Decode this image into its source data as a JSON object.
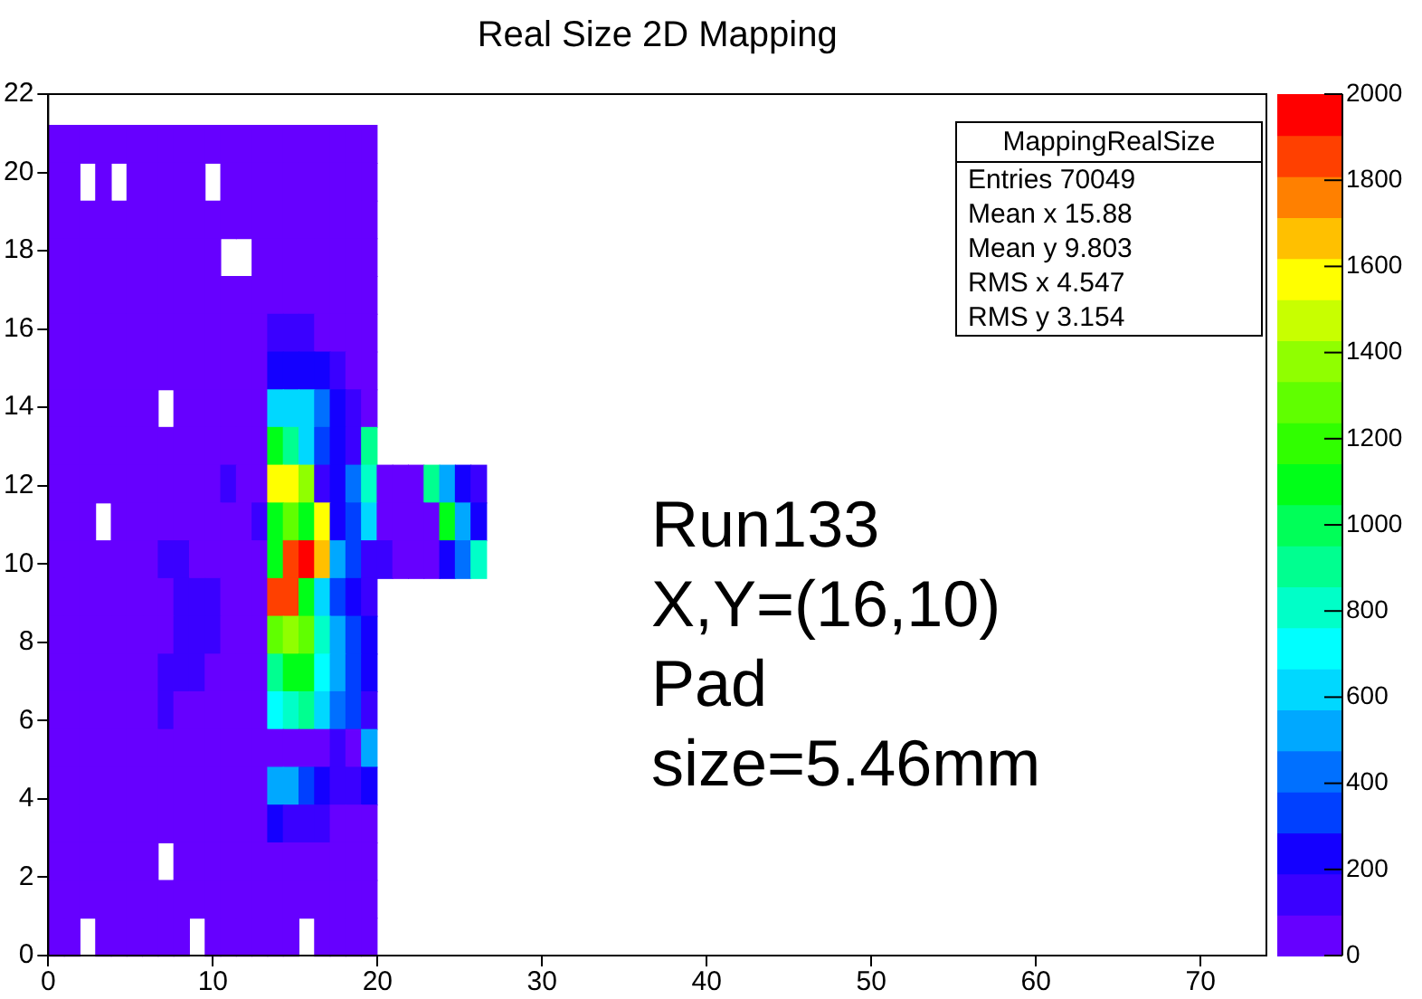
{
  "chart_data": {
    "type": "heatmap",
    "title": "Real Size 2D Mapping",
    "annotations": [
      "MappingRealSize",
      "Entries 70049",
      "Mean x 15.88",
      "Mean y 9.803",
      "RMS x 4.547",
      "RMS y 3.154",
      "Run133",
      "X,Y=(16,10)",
      "Pad",
      "size=5.46mm"
    ],
    "x": [
      0.475,
      1.425,
      2.375,
      3.325,
      4.275,
      5.225,
      6.175,
      7.125,
      8.075,
      9.025,
      9.975,
      10.925,
      11.875,
      12.825,
      13.775,
      14.725,
      15.675,
      16.625,
      17.575,
      18.525,
      19.475,
      20.425,
      21.375,
      22.325,
      23.275,
      24.225,
      25.175,
      26.125
    ],
    "y": [
      20.73,
      19.76,
      18.8,
      17.84,
      16.87,
      15.91,
      14.94,
      13.98,
      13.02,
      12.05,
      11.09,
      10.12,
      9.16,
      8.19,
      7.23,
      6.27,
      5.3,
      4.34,
      3.37,
      2.41,
      1.45,
      0.48
    ],
    "cells": [
      [
        50,
        50,
        50,
        50,
        50,
        50,
        50,
        50,
        50,
        50,
        50,
        50,
        50,
        50,
        50,
        50,
        50,
        50,
        50,
        50,
        50,
        null,
        null,
        null,
        null,
        null,
        null,
        null
      ],
      [
        50,
        50,
        null,
        50,
        null,
        50,
        50,
        50,
        50,
        50,
        null,
        50,
        50,
        50,
        50,
        50,
        50,
        50,
        50,
        50,
        50,
        null,
        null,
        null,
        null,
        null,
        null,
        null
      ],
      [
        50,
        50,
        50,
        50,
        50,
        50,
        50,
        50,
        50,
        50,
        50,
        50,
        50,
        50,
        50,
        50,
        50,
        50,
        50,
        50,
        50,
        null,
        null,
        null,
        null,
        null,
        null,
        null
      ],
      [
        50,
        50,
        50,
        50,
        50,
        50,
        50,
        50,
        50,
        50,
        50,
        null,
        null,
        50,
        50,
        50,
        50,
        50,
        50,
        50,
        50,
        null,
        null,
        null,
        null,
        null,
        null,
        null
      ],
      [
        50,
        50,
        50,
        50,
        50,
        50,
        50,
        50,
        50,
        50,
        50,
        50,
        50,
        50,
        50,
        50,
        50,
        50,
        50,
        50,
        50,
        null,
        null,
        null,
        null,
        null,
        null,
        null
      ],
      [
        50,
        50,
        50,
        50,
        50,
        50,
        50,
        50,
        50,
        50,
        50,
        50,
        50,
        50,
        150,
        150,
        150,
        50,
        50,
        50,
        50,
        null,
        null,
        null,
        null,
        null,
        null,
        null
      ],
      [
        50,
        50,
        50,
        50,
        50,
        50,
        50,
        50,
        50,
        50,
        50,
        50,
        50,
        50,
        250,
        250,
        250,
        250,
        150,
        50,
        50,
        null,
        null,
        null,
        null,
        null,
        null,
        null
      ],
      [
        50,
        50,
        50,
        50,
        50,
        50,
        50,
        null,
        50,
        50,
        50,
        50,
        50,
        50,
        650,
        650,
        650,
        450,
        250,
        150,
        50,
        null,
        null,
        null,
        null,
        null,
        null,
        null
      ],
      [
        50,
        50,
        50,
        50,
        50,
        50,
        50,
        50,
        50,
        50,
        50,
        50,
        50,
        50,
        1050,
        950,
        650,
        350,
        250,
        150,
        950,
        null,
        null,
        null,
        null,
        null,
        null,
        null
      ],
      [
        50,
        50,
        50,
        50,
        50,
        50,
        50,
        50,
        50,
        50,
        50,
        150,
        50,
        50,
        1550,
        1550,
        1350,
        150,
        250,
        450,
        850,
        50,
        50,
        50,
        950,
        550,
        250,
        150
      ],
      [
        50,
        50,
        50,
        null,
        50,
        50,
        50,
        50,
        50,
        50,
        50,
        50,
        50,
        150,
        1050,
        1250,
        1050,
        1550,
        250,
        350,
        650,
        50,
        50,
        50,
        50,
        1050,
        550,
        250
      ],
      [
        50,
        50,
        50,
        50,
        50,
        50,
        50,
        150,
        150,
        50,
        50,
        50,
        50,
        50,
        1050,
        1850,
        1950,
        1650,
        550,
        350,
        150,
        150,
        50,
        50,
        50,
        250,
        450,
        850
      ],
      [
        50,
        50,
        50,
        50,
        50,
        50,
        50,
        50,
        150,
        150,
        150,
        50,
        50,
        50,
        1850,
        1850,
        1050,
        650,
        350,
        250,
        150,
        null,
        null,
        null,
        null,
        null,
        null,
        null
      ],
      [
        50,
        50,
        50,
        50,
        50,
        50,
        50,
        50,
        150,
        150,
        150,
        50,
        50,
        50,
        1250,
        1350,
        1250,
        850,
        550,
        350,
        250,
        null,
        null,
        null,
        null,
        null,
        null,
        null
      ],
      [
        50,
        50,
        50,
        50,
        50,
        50,
        50,
        150,
        150,
        150,
        50,
        50,
        50,
        50,
        950,
        1050,
        1050,
        750,
        550,
        350,
        250,
        null,
        null,
        null,
        null,
        null,
        null,
        null
      ],
      [
        50,
        50,
        50,
        50,
        50,
        50,
        50,
        150,
        50,
        50,
        50,
        50,
        50,
        50,
        750,
        850,
        950,
        650,
        450,
        350,
        150,
        null,
        null,
        null,
        null,
        null,
        null,
        null
      ],
      [
        50,
        50,
        50,
        50,
        50,
        50,
        50,
        50,
        50,
        50,
        50,
        50,
        50,
        50,
        50,
        50,
        50,
        50,
        150,
        50,
        550,
        null,
        null,
        null,
        null,
        null,
        null,
        null
      ],
      [
        50,
        50,
        50,
        50,
        50,
        50,
        50,
        50,
        50,
        50,
        50,
        50,
        50,
        50,
        550,
        550,
        350,
        250,
        150,
        150,
        250,
        null,
        null,
        null,
        null,
        null,
        null,
        null
      ],
      [
        50,
        50,
        50,
        50,
        50,
        50,
        50,
        50,
        50,
        50,
        50,
        50,
        50,
        50,
        250,
        150,
        150,
        150,
        50,
        50,
        50,
        null,
        null,
        null,
        null,
        null,
        null,
        null
      ],
      [
        50,
        50,
        50,
        50,
        50,
        50,
        50,
        null,
        50,
        50,
        50,
        50,
        50,
        50,
        50,
        50,
        50,
        50,
        50,
        50,
        50,
        null,
        null,
        null,
        null,
        null,
        null,
        null
      ],
      [
        50,
        50,
        50,
        50,
        50,
        50,
        50,
        50,
        50,
        50,
        50,
        50,
        50,
        50,
        50,
        50,
        50,
        50,
        50,
        50,
        50,
        null,
        null,
        null,
        null,
        null,
        null,
        null
      ],
      [
        50,
        50,
        null,
        50,
        50,
        50,
        50,
        50,
        50,
        null,
        50,
        50,
        50,
        50,
        50,
        50,
        null,
        50,
        50,
        50,
        50,
        null,
        null,
        null,
        null,
        null,
        null,
        null
      ]
    ],
    "colors": [
      "#6600ff",
      "#3a00ff",
      "#1400ff",
      "#0040ff",
      "#0070ff",
      "#00a8ff",
      "#00d8ff",
      "#00ffff",
      "#00ffc8",
      "#00ff90",
      "#00ff58",
      "#00ff18",
      "#30ff00",
      "#60ff00",
      "#90ff00",
      "#c8ff00",
      "#ffff00",
      "#ffc000",
      "#ff8000",
      "#ff4000",
      "#ff0000"
    ],
    "clim": [
      0,
      2000
    ],
    "cticks": [
      0,
      200,
      400,
      600,
      800,
      1000,
      1200,
      1400,
      1600,
      1800,
      2000
    ],
    "xlim": [
      0,
      74
    ],
    "xticks": [
      0,
      10,
      20,
      30,
      40,
      50,
      60,
      70
    ],
    "ylim": [
      0,
      22
    ],
    "yticks": [
      0,
      2,
      4,
      6,
      8,
      10,
      12,
      14,
      16,
      18,
      20,
      22
    ],
    "grid": false,
    "legend": false
  }
}
